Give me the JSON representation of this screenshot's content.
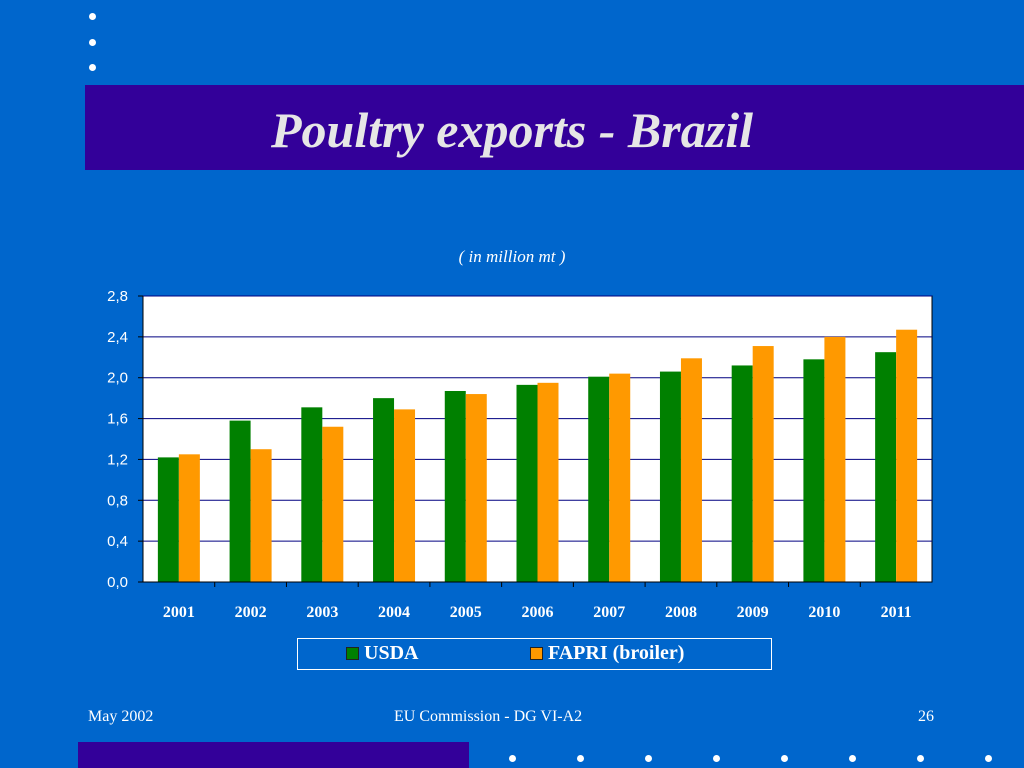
{
  "slide": {
    "title": "Poultry exports - Brazil",
    "subtitle": "( in million mt )",
    "footer_left": "May 2002",
    "footer_center": "EU Commission - DG VI-A2",
    "footer_right": "26"
  },
  "colors": {
    "background": "#0066CC",
    "band": "#330099",
    "usda": "#008000",
    "fapri": "#FF9900",
    "plot_bg": "#FFFFFF"
  },
  "chart_data": {
    "type": "bar",
    "categories": [
      "2001",
      "2002",
      "2003",
      "2004",
      "2005",
      "2006",
      "2007",
      "2008",
      "2009",
      "2010",
      "2011"
    ],
    "series": [
      {
        "name": "USDA",
        "values": [
          1.22,
          1.58,
          1.71,
          1.8,
          1.87,
          1.93,
          2.01,
          2.06,
          2.12,
          2.18,
          2.25
        ]
      },
      {
        "name": "FAPRI (broiler)",
        "values": [
          1.25,
          1.3,
          1.52,
          1.69,
          1.84,
          1.95,
          2.04,
          2.19,
          2.31,
          2.4,
          2.47
        ]
      }
    ],
    "y_ticks": [
      "0,0",
      "0,4",
      "0,8",
      "1,2",
      "1,6",
      "2,0",
      "2,4",
      "2,8"
    ],
    "ylim": [
      0,
      2.8
    ],
    "grid": true,
    "legend_position": "bottom"
  }
}
